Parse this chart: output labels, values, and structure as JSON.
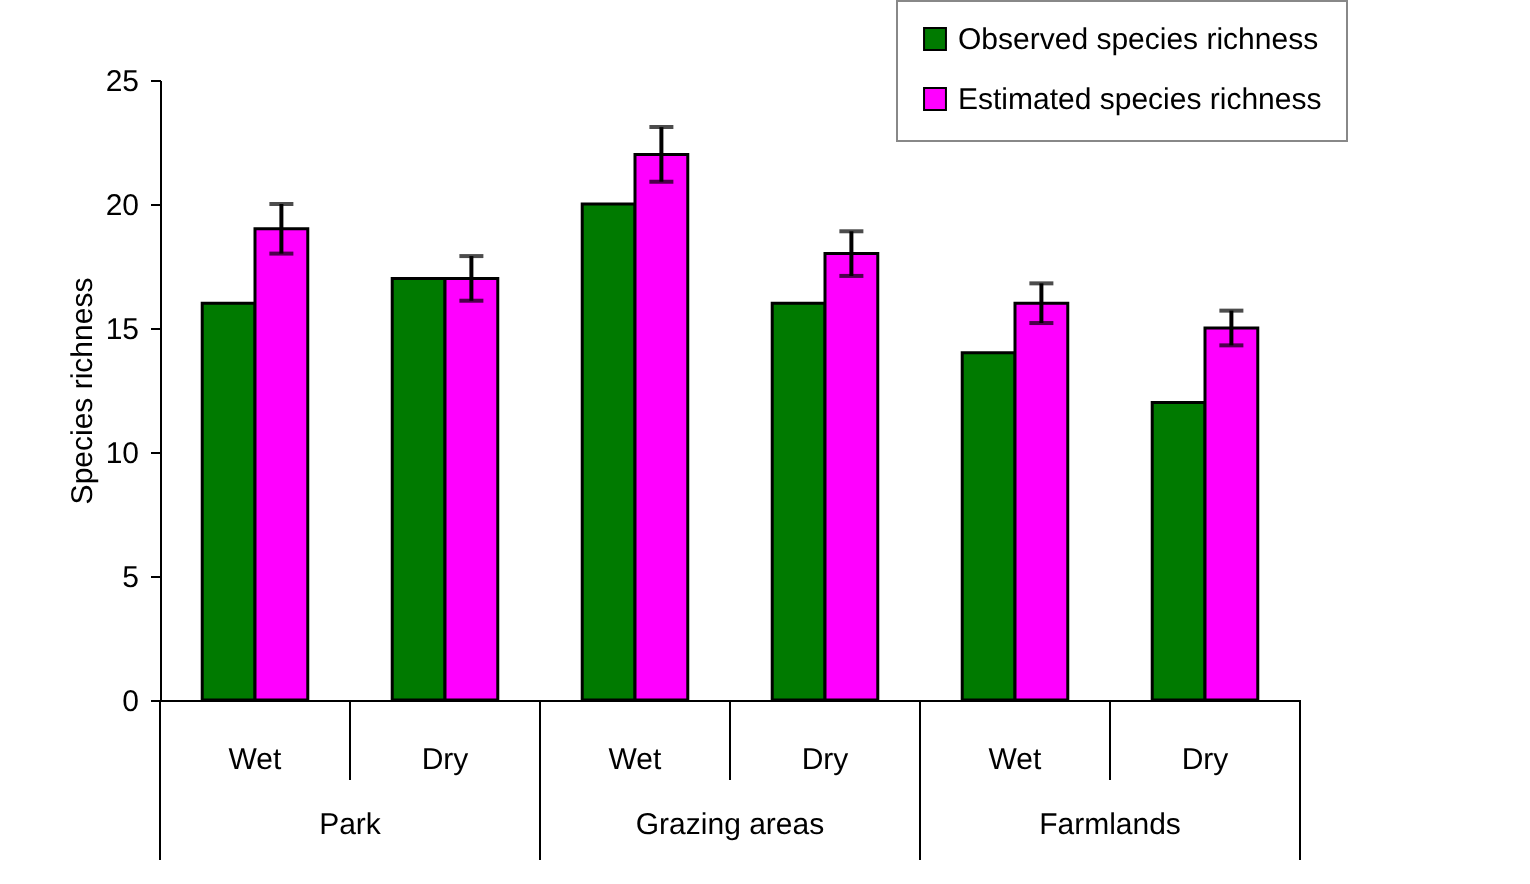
{
  "chart_data": {
    "type": "bar",
    "ylabel": "Species richness",
    "categories": [
      "Wet",
      "Dry",
      "Wet",
      "Dry",
      "Wet",
      "Dry"
    ],
    "annotations": [
      "Park",
      "Grazing areas",
      "Farmlands"
    ],
    "series": [
      {
        "name": "Observed species richness",
        "color": "#007a00",
        "values": [
          16,
          17,
          20,
          16,
          14,
          12
        ]
      },
      {
        "name": "Estimated species richness",
        "color": "#ff00ff",
        "values": [
          19,
          17,
          22,
          18,
          16,
          15
        ],
        "errors": [
          1,
          0.9,
          1.1,
          0.9,
          0.8,
          0.7
        ]
      }
    ],
    "ylim": [
      0,
      25
    ],
    "yticks": [
      0,
      5,
      10,
      15,
      20,
      25
    ],
    "grid": false,
    "legend": "top right"
  }
}
